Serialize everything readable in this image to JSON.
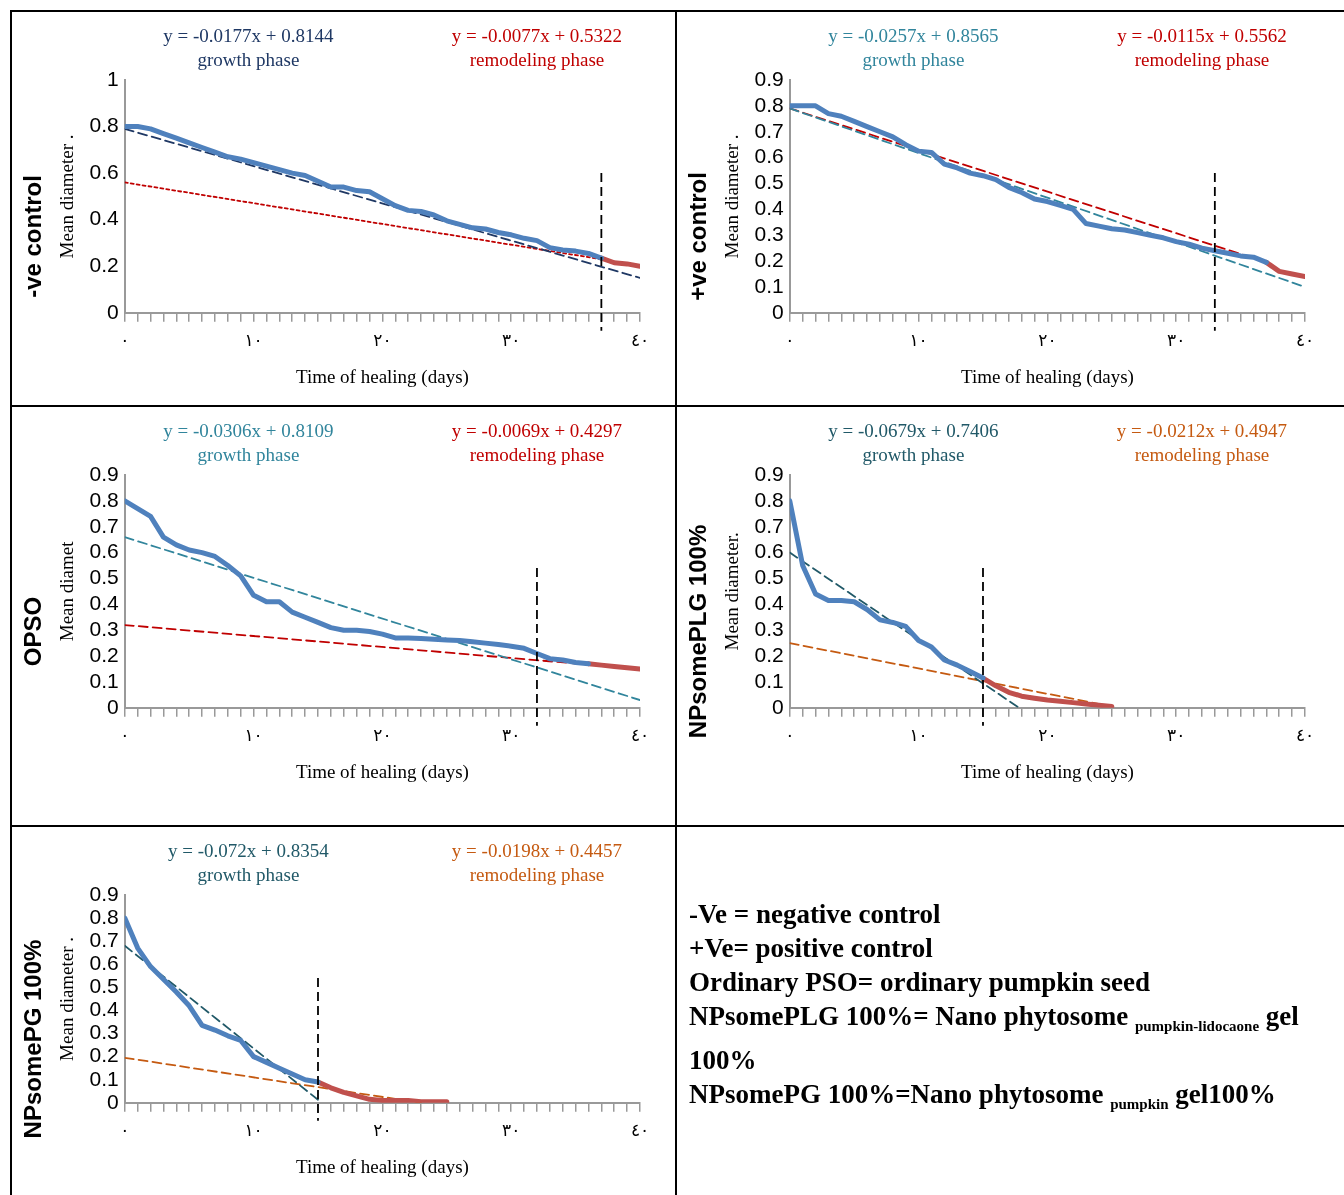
{
  "chart_data": [
    {
      "type": "line",
      "title": "-ve control",
      "ylabel": "Mean diameter .",
      "xlabel": "Time of healing (days)",
      "xlim": [
        0,
        40
      ],
      "ylim": [
        0,
        1
      ],
      "yticks": [
        0,
        0.2,
        0.4,
        0.6,
        0.8,
        1
      ],
      "xticks": [
        {
          "value": 0,
          "label": "٠"
        },
        {
          "value": 1,
          "label": null
        },
        {
          "value": 2,
          "label": null
        },
        {
          "value": 3,
          "label": null
        },
        {
          "value": 4,
          "label": null
        },
        {
          "value": 5,
          "label": null
        },
        {
          "value": 6,
          "label": null
        },
        {
          "value": 7,
          "label": null
        },
        {
          "value": 8,
          "label": null
        },
        {
          "value": 9,
          "label": null
        },
        {
          "value": 10,
          "label": "١٠"
        },
        {
          "value": 11,
          "label": null
        },
        {
          "value": 12,
          "label": null
        },
        {
          "value": 13,
          "label": null
        },
        {
          "value": 14,
          "label": null
        },
        {
          "value": 15,
          "label": null
        },
        {
          "value": 16,
          "label": null
        },
        {
          "value": 17,
          "label": null
        },
        {
          "value": 18,
          "label": null
        },
        {
          "value": 19,
          "label": null
        },
        {
          "value": 20,
          "label": "٢٠"
        },
        {
          "value": 21,
          "label": null
        },
        {
          "value": 22,
          "label": null
        },
        {
          "value": 23,
          "label": null
        },
        {
          "value": 24,
          "label": null
        },
        {
          "value": 25,
          "label": null
        },
        {
          "value": 26,
          "label": null
        },
        {
          "value": 27,
          "label": null
        },
        {
          "value": 28,
          "label": null
        },
        {
          "value": 29,
          "label": null
        },
        {
          "value": 30,
          "label": "٣٠"
        },
        {
          "value": 31,
          "label": null
        },
        {
          "value": 32,
          "label": null
        },
        {
          "value": 33,
          "label": null
        },
        {
          "value": 34,
          "label": null
        },
        {
          "value": 35,
          "label": null
        },
        {
          "value": 36,
          "label": null
        },
        {
          "value": 37,
          "label": null
        },
        {
          "value": 38,
          "label": null
        },
        {
          "value": 39,
          "label": null
        },
        {
          "value": 40,
          "label": "٤٠"
        }
      ],
      "grid": false,
      "legend": false,
      "marker": "none",
      "series": [
        {
          "color": "#4f81bd",
          "line_style": "solid",
          "x": [
            0,
            1,
            2,
            3,
            4,
            5,
            6,
            7,
            8,
            9,
            10,
            11,
            12,
            13,
            14,
            15,
            16,
            17,
            18,
            19,
            20,
            21,
            22,
            23,
            24,
            25,
            26,
            27,
            28,
            29,
            30,
            31,
            32,
            33,
            34,
            35,
            36,
            37
          ],
          "values": [
            0.8,
            0.8,
            0.79,
            0.77,
            0.75,
            0.73,
            0.71,
            0.69,
            0.67,
            0.66,
            0.645,
            0.63,
            0.615,
            0.6,
            0.59,
            0.565,
            0.54,
            0.54,
            0.525,
            0.52,
            0.49,
            0.46,
            0.44,
            0.435,
            0.42,
            0.395,
            0.38,
            0.365,
            0.36,
            0.345,
            0.335,
            0.32,
            0.31,
            0.28,
            0.27,
            0.265,
            0.255,
            0.235
          ]
        },
        {
          "color": "#c0504d",
          "line_style": "solid",
          "x": [
            37,
            38,
            39,
            40
          ],
          "values": [
            0.235,
            0.215,
            0.21,
            0.2
          ]
        },
        {
          "name": "y = -0.0177x + 0.8144",
          "color": "#1f3864",
          "line_style": "dashed",
          "x": [
            0,
            40
          ],
          "values": [
            0.79,
            0.15
          ]
        },
        {
          "name": "y = -0.0077x + 0.5322",
          "color": "#c00000",
          "line_style": "dotted",
          "x": [
            0,
            37
          ],
          "values": [
            0.56,
            0.23
          ]
        }
      ],
      "ref_lines": [
        {
          "axis": "x",
          "value": 37,
          "color": "#000000",
          "line_style": "dashed"
        }
      ],
      "annotations": [
        "growth phase",
        "remodeling phase"
      ]
    },
    {
      "type": "line",
      "title": "+ve control",
      "ylabel": "Mean diameter .",
      "xlabel": "Time of healing (days)",
      "xlim": [
        0,
        40
      ],
      "ylim": [
        0,
        0.9
      ],
      "yticks": [
        0,
        0.1,
        0.2,
        0.3,
        0.4,
        0.5,
        0.6,
        0.7,
        0.8,
        0.9
      ],
      "xticks": [
        {
          "value": 0,
          "label": "٠"
        },
        {
          "value": 1,
          "label": null
        },
        {
          "value": 2,
          "label": null
        },
        {
          "value": 3,
          "label": null
        },
        {
          "value": 4,
          "label": null
        },
        {
          "value": 5,
          "label": null
        },
        {
          "value": 6,
          "label": null
        },
        {
          "value": 7,
          "label": null
        },
        {
          "value": 8,
          "label": null
        },
        {
          "value": 9,
          "label": null
        },
        {
          "value": 10,
          "label": "١٠"
        },
        {
          "value": 11,
          "label": null
        },
        {
          "value": 12,
          "label": null
        },
        {
          "value": 13,
          "label": null
        },
        {
          "value": 14,
          "label": null
        },
        {
          "value": 15,
          "label": null
        },
        {
          "value": 16,
          "label": null
        },
        {
          "value": 17,
          "label": null
        },
        {
          "value": 18,
          "label": null
        },
        {
          "value": 19,
          "label": null
        },
        {
          "value": 20,
          "label": "٢٠"
        },
        {
          "value": 21,
          "label": null
        },
        {
          "value": 22,
          "label": null
        },
        {
          "value": 23,
          "label": null
        },
        {
          "value": 24,
          "label": null
        },
        {
          "value": 25,
          "label": null
        },
        {
          "value": 26,
          "label": null
        },
        {
          "value": 27,
          "label": null
        },
        {
          "value": 28,
          "label": null
        },
        {
          "value": 29,
          "label": null
        },
        {
          "value": 30,
          "label": "٣٠"
        },
        {
          "value": 31,
          "label": null
        },
        {
          "value": 32,
          "label": null
        },
        {
          "value": 33,
          "label": null
        },
        {
          "value": 34,
          "label": null
        },
        {
          "value": 35,
          "label": null
        },
        {
          "value": 36,
          "label": null
        },
        {
          "value": 37,
          "label": null
        },
        {
          "value": 38,
          "label": null
        },
        {
          "value": 39,
          "label": null
        },
        {
          "value": 40,
          "label": "٤٠"
        }
      ],
      "grid": false,
      "legend": false,
      "marker": "none",
      "series": [
        {
          "color": "#4f81bd",
          "line_style": "solid",
          "x": [
            0,
            1,
            2,
            3,
            4,
            5,
            6,
            7,
            8,
            9,
            10,
            11,
            12,
            13,
            14,
            15,
            16,
            17,
            18,
            19,
            20,
            21,
            22,
            23,
            24,
            25,
            26,
            27,
            28,
            29,
            30,
            31,
            32,
            33,
            34,
            35,
            36,
            37
          ],
          "values": [
            0.8,
            0.8,
            0.8,
            0.77,
            0.76,
            0.74,
            0.72,
            0.7,
            0.68,
            0.65,
            0.625,
            0.62,
            0.575,
            0.56,
            0.54,
            0.53,
            0.515,
            0.485,
            0.465,
            0.44,
            0.43,
            0.415,
            0.4,
            0.345,
            0.335,
            0.325,
            0.32,
            0.31,
            0.3,
            0.29,
            0.275,
            0.265,
            0.25,
            0.24,
            0.23,
            0.22,
            0.215,
            0.195
          ]
        },
        {
          "color": "#c0504d",
          "line_style": "solid",
          "x": [
            37,
            38,
            39,
            40
          ],
          "values": [
            0.195,
            0.16,
            0.15,
            0.14
          ]
        },
        {
          "name": "y = -0.0257x + 0.8565",
          "color": "#31859c",
          "line_style": "dashed",
          "x": [
            0,
            40
          ],
          "values": [
            0.79,
            0.1
          ]
        },
        {
          "name": "y = -0.0115x + 0.5562",
          "color": "#c00000",
          "line_style": "dashed",
          "x": [
            0,
            37
          ],
          "values": [
            0.79,
            0.195
          ]
        }
      ],
      "ref_lines": [
        {
          "axis": "x",
          "value": 33,
          "color": "#000000",
          "line_style": "dashed"
        }
      ],
      "annotations": [
        "growth phase",
        "remodeling phase"
      ]
    },
    {
      "type": "line",
      "title": "OPSO",
      "ylabel": "Mean diamet",
      "xlabel": "Time of healing (days)",
      "xlim": [
        0,
        40
      ],
      "ylim": [
        0,
        0.9
      ],
      "yticks": [
        0,
        0.1,
        0.2,
        0.3,
        0.4,
        0.5,
        0.6,
        0.7,
        0.8,
        0.9
      ],
      "xticks": [
        {
          "value": 0,
          "label": "٠"
        },
        {
          "value": 1,
          "label": null
        },
        {
          "value": 2,
          "label": null
        },
        {
          "value": 3,
          "label": null
        },
        {
          "value": 4,
          "label": null
        },
        {
          "value": 5,
          "label": null
        },
        {
          "value": 6,
          "label": null
        },
        {
          "value": 7,
          "label": null
        },
        {
          "value": 8,
          "label": null
        },
        {
          "value": 9,
          "label": null
        },
        {
          "value": 10,
          "label": "١٠"
        },
        {
          "value": 11,
          "label": null
        },
        {
          "value": 12,
          "label": null
        },
        {
          "value": 13,
          "label": null
        },
        {
          "value": 14,
          "label": null
        },
        {
          "value": 15,
          "label": null
        },
        {
          "value": 16,
          "label": null
        },
        {
          "value": 17,
          "label": null
        },
        {
          "value": 18,
          "label": null
        },
        {
          "value": 19,
          "label": null
        },
        {
          "value": 20,
          "label": "٢٠"
        },
        {
          "value": 21,
          "label": null
        },
        {
          "value": 22,
          "label": null
        },
        {
          "value": 23,
          "label": null
        },
        {
          "value": 24,
          "label": null
        },
        {
          "value": 25,
          "label": null
        },
        {
          "value": 26,
          "label": null
        },
        {
          "value": 27,
          "label": null
        },
        {
          "value": 28,
          "label": null
        },
        {
          "value": 29,
          "label": null
        },
        {
          "value": 30,
          "label": "٣٠"
        },
        {
          "value": 31,
          "label": null
        },
        {
          "value": 32,
          "label": null
        },
        {
          "value": 33,
          "label": null
        },
        {
          "value": 34,
          "label": null
        },
        {
          "value": 35,
          "label": null
        },
        {
          "value": 36,
          "label": null
        },
        {
          "value": 37,
          "label": null
        },
        {
          "value": 38,
          "label": null
        },
        {
          "value": 39,
          "label": null
        },
        {
          "value": 40,
          "label": "٤٠"
        }
      ],
      "grid": false,
      "legend": false,
      "marker": "none",
      "series": [
        {
          "color": "#4f81bd",
          "line_style": "solid",
          "x": [
            0,
            1,
            2,
            3,
            4,
            5,
            6,
            7,
            8,
            9,
            10,
            11,
            12,
            13,
            14,
            15,
            16,
            17,
            18,
            19,
            20,
            21,
            22,
            23,
            24,
            25,
            26,
            27,
            28,
            29,
            30,
            31,
            32,
            33,
            34,
            35,
            36
          ],
          "values": [
            0.8,
            0.77,
            0.74,
            0.66,
            0.63,
            0.61,
            0.6,
            0.585,
            0.55,
            0.51,
            0.435,
            0.41,
            0.41,
            0.37,
            0.35,
            0.33,
            0.31,
            0.3,
            0.3,
            0.295,
            0.285,
            0.27,
            0.27,
            0.268,
            0.265,
            0.262,
            0.26,
            0.255,
            0.25,
            0.245,
            0.238,
            0.23,
            0.21,
            0.19,
            0.185,
            0.175,
            0.17
          ]
        },
        {
          "color": "#c0504d",
          "line_style": "solid",
          "x": [
            36,
            37,
            38,
            39,
            40
          ],
          "values": [
            0.17,
            0.165,
            0.16,
            0.155,
            0.15
          ]
        },
        {
          "name": "y = -0.0306x + 0.8109",
          "color": "#31859c",
          "line_style": "dashed",
          "x": [
            0,
            40
          ],
          "values": [
            0.66,
            0.03
          ]
        },
        {
          "name": "y = -0.0069x + 0.4297",
          "color": "#c00000",
          "line_style": "dashed",
          "x": [
            0,
            40
          ],
          "values": [
            0.32,
            0.15
          ]
        }
      ],
      "ref_lines": [
        {
          "axis": "x",
          "value": 32,
          "color": "#000000",
          "line_style": "dashed"
        }
      ],
      "annotations": [
        "growth phase",
        "remodeling phase"
      ]
    },
    {
      "type": "line",
      "title": "NPsomePLG 100%",
      "ylabel": "Mean diameter.",
      "xlabel": "Time of healing (days)",
      "xlim": [
        0,
        40
      ],
      "ylim": [
        0,
        0.9
      ],
      "yticks": [
        0,
        0.1,
        0.2,
        0.3,
        0.4,
        0.5,
        0.6,
        0.7,
        0.8,
        0.9
      ],
      "xticks": [
        {
          "value": 0,
          "label": "٠"
        },
        {
          "value": 1,
          "label": null
        },
        {
          "value": 2,
          "label": null
        },
        {
          "value": 3,
          "label": null
        },
        {
          "value": 4,
          "label": null
        },
        {
          "value": 5,
          "label": null
        },
        {
          "value": 6,
          "label": null
        },
        {
          "value": 7,
          "label": null
        },
        {
          "value": 8,
          "label": null
        },
        {
          "value": 9,
          "label": null
        },
        {
          "value": 10,
          "label": "١٠"
        },
        {
          "value": 11,
          "label": null
        },
        {
          "value": 12,
          "label": null
        },
        {
          "value": 13,
          "label": null
        },
        {
          "value": 14,
          "label": null
        },
        {
          "value": 15,
          "label": null
        },
        {
          "value": 16,
          "label": null
        },
        {
          "value": 17,
          "label": null
        },
        {
          "value": 18,
          "label": null
        },
        {
          "value": 19,
          "label": null
        },
        {
          "value": 20,
          "label": "٢٠"
        },
        {
          "value": 21,
          "label": null
        },
        {
          "value": 22,
          "label": null
        },
        {
          "value": 23,
          "label": null
        },
        {
          "value": 24,
          "label": null
        },
        {
          "value": 25,
          "label": null
        },
        {
          "value": 26,
          "label": null
        },
        {
          "value": 27,
          "label": null
        },
        {
          "value": 28,
          "label": null
        },
        {
          "value": 29,
          "label": null
        },
        {
          "value": 30,
          "label": "٣٠"
        },
        {
          "value": 31,
          "label": null
        },
        {
          "value": 32,
          "label": null
        },
        {
          "value": 33,
          "label": null
        },
        {
          "value": 34,
          "label": null
        },
        {
          "value": 35,
          "label": null
        },
        {
          "value": 36,
          "label": null
        },
        {
          "value": 37,
          "label": null
        },
        {
          "value": 38,
          "label": null
        },
        {
          "value": 39,
          "label": null
        },
        {
          "value": 40,
          "label": "٤٠"
        }
      ],
      "grid": false,
      "legend": false,
      "marker": "none",
      "series": [
        {
          "color": "#4f81bd",
          "line_style": "solid",
          "x": [
            0,
            1,
            2,
            3,
            4,
            5,
            6,
            7,
            8,
            9,
            10,
            11,
            12,
            13,
            14,
            15
          ],
          "values": [
            0.8,
            0.55,
            0.44,
            0.415,
            0.415,
            0.41,
            0.38,
            0.34,
            0.33,
            0.315,
            0.26,
            0.235,
            0.185,
            0.165,
            0.14,
            0.115
          ]
        },
        {
          "color": "#c0504d",
          "line_style": "solid",
          "x": [
            15,
            16,
            17,
            18,
            19,
            20,
            21,
            22,
            23,
            24,
            25
          ],
          "values": [
            0.115,
            0.085,
            0.06,
            0.045,
            0.037,
            0.03,
            0.025,
            0.02,
            0.015,
            0.01,
            0.005
          ]
        },
        {
          "name": "y = -0.0679x + 0.7406",
          "color": "#215968",
          "line_style": "dashed",
          "x": [
            0,
            17.8
          ],
          "values": [
            0.6,
            0
          ]
        },
        {
          "name": "y = -0.0212x + 0.4947",
          "color": "#c55a11",
          "line_style": "dashed",
          "x": [
            0,
            24.5
          ],
          "values": [
            0.25,
            0.01
          ]
        }
      ],
      "ref_lines": [
        {
          "axis": "x",
          "value": 15,
          "color": "#000000",
          "line_style": "dashed"
        }
      ],
      "annotations": [
        "growth phase",
        "remodeling phase"
      ]
    },
    {
      "type": "line",
      "title": "NPsomePG 100%",
      "ylabel": "Mean diameter .",
      "xlabel": "Time of healing (days)",
      "xlim": [
        0,
        40
      ],
      "ylim": [
        0,
        0.9
      ],
      "yticks": [
        0,
        0.1,
        0.2,
        0.3,
        0.4,
        0.5,
        0.6,
        0.7,
        0.8,
        0.9
      ],
      "xticks": [
        {
          "value": 0,
          "label": "٠"
        },
        {
          "value": 1,
          "label": null
        },
        {
          "value": 2,
          "label": null
        },
        {
          "value": 3,
          "label": null
        },
        {
          "value": 4,
          "label": null
        },
        {
          "value": 5,
          "label": null
        },
        {
          "value": 6,
          "label": null
        },
        {
          "value": 7,
          "label": null
        },
        {
          "value": 8,
          "label": null
        },
        {
          "value": 9,
          "label": null
        },
        {
          "value": 10,
          "label": "١٠"
        },
        {
          "value": 11,
          "label": null
        },
        {
          "value": 12,
          "label": null
        },
        {
          "value": 13,
          "label": null
        },
        {
          "value": 14,
          "label": null
        },
        {
          "value": 15,
          "label": null
        },
        {
          "value": 16,
          "label": null
        },
        {
          "value": 17,
          "label": null
        },
        {
          "value": 18,
          "label": null
        },
        {
          "value": 19,
          "label": null
        },
        {
          "value": 20,
          "label": "٢٠"
        },
        {
          "value": 21,
          "label": null
        },
        {
          "value": 22,
          "label": null
        },
        {
          "value": 23,
          "label": null
        },
        {
          "value": 24,
          "label": null
        },
        {
          "value": 25,
          "label": null
        },
        {
          "value": 26,
          "label": null
        },
        {
          "value": 27,
          "label": null
        },
        {
          "value": 28,
          "label": null
        },
        {
          "value": 29,
          "label": null
        },
        {
          "value": 30,
          "label": "٣٠"
        },
        {
          "value": 31,
          "label": null
        },
        {
          "value": 32,
          "label": null
        },
        {
          "value": 33,
          "label": null
        },
        {
          "value": 34,
          "label": null
        },
        {
          "value": 35,
          "label": null
        },
        {
          "value": 36,
          "label": null
        },
        {
          "value": 37,
          "label": null
        },
        {
          "value": 38,
          "label": null
        },
        {
          "value": 39,
          "label": null
        },
        {
          "value": 40,
          "label": "٤٠"
        }
      ],
      "grid": false,
      "legend": false,
      "marker": "none",
      "series": [
        {
          "color": "#4f81bd",
          "line_style": "solid",
          "x": [
            0,
            1,
            2,
            3,
            4,
            5,
            6,
            7,
            8,
            9,
            10,
            11,
            12,
            13,
            14,
            15
          ],
          "values": [
            0.8,
            0.67,
            0.59,
            0.535,
            0.48,
            0.42,
            0.335,
            0.315,
            0.29,
            0.27,
            0.2,
            0.175,
            0.15,
            0.125,
            0.1,
            0.09
          ]
        },
        {
          "color": "#c0504d",
          "line_style": "solid",
          "x": [
            15,
            16,
            17,
            18,
            19,
            20,
            21,
            22,
            23,
            24,
            25
          ],
          "values": [
            0.09,
            0.065,
            0.045,
            0.03,
            0.015,
            0.01,
            0.01,
            0.01,
            0.005,
            0.005,
            0.005
          ]
        },
        {
          "name": "y = -0.072x + 0.8354",
          "color": "#215968",
          "line_style": "dashed",
          "x": [
            0,
            15.3
          ],
          "values": [
            0.68,
            0
          ]
        },
        {
          "name": "y = -0.0198x + 0.4457",
          "color": "#c55a11",
          "line_style": "dashed",
          "x": [
            0,
            23
          ],
          "values": [
            0.195,
            0
          ]
        }
      ],
      "ref_lines": [
        {
          "axis": "x",
          "value": 15,
          "color": "#000000",
          "line_style": "dashed"
        }
      ],
      "annotations": [
        "growth phase",
        "remodeling phase"
      ]
    },
    {
      "type": "other",
      "annotations": [
        "-Ve = negative control",
        "+Ve= positive control",
        "Ordinary PSO= ordinary pumpkin seed",
        "NPsomePLG 100%= Nano phytosome $_{pumpkin-lidocaone}$ gel 100%",
        "NPsomePG 100%=Nano phytosome $_{pumpkin}$ gel100%"
      ]
    }
  ]
}
